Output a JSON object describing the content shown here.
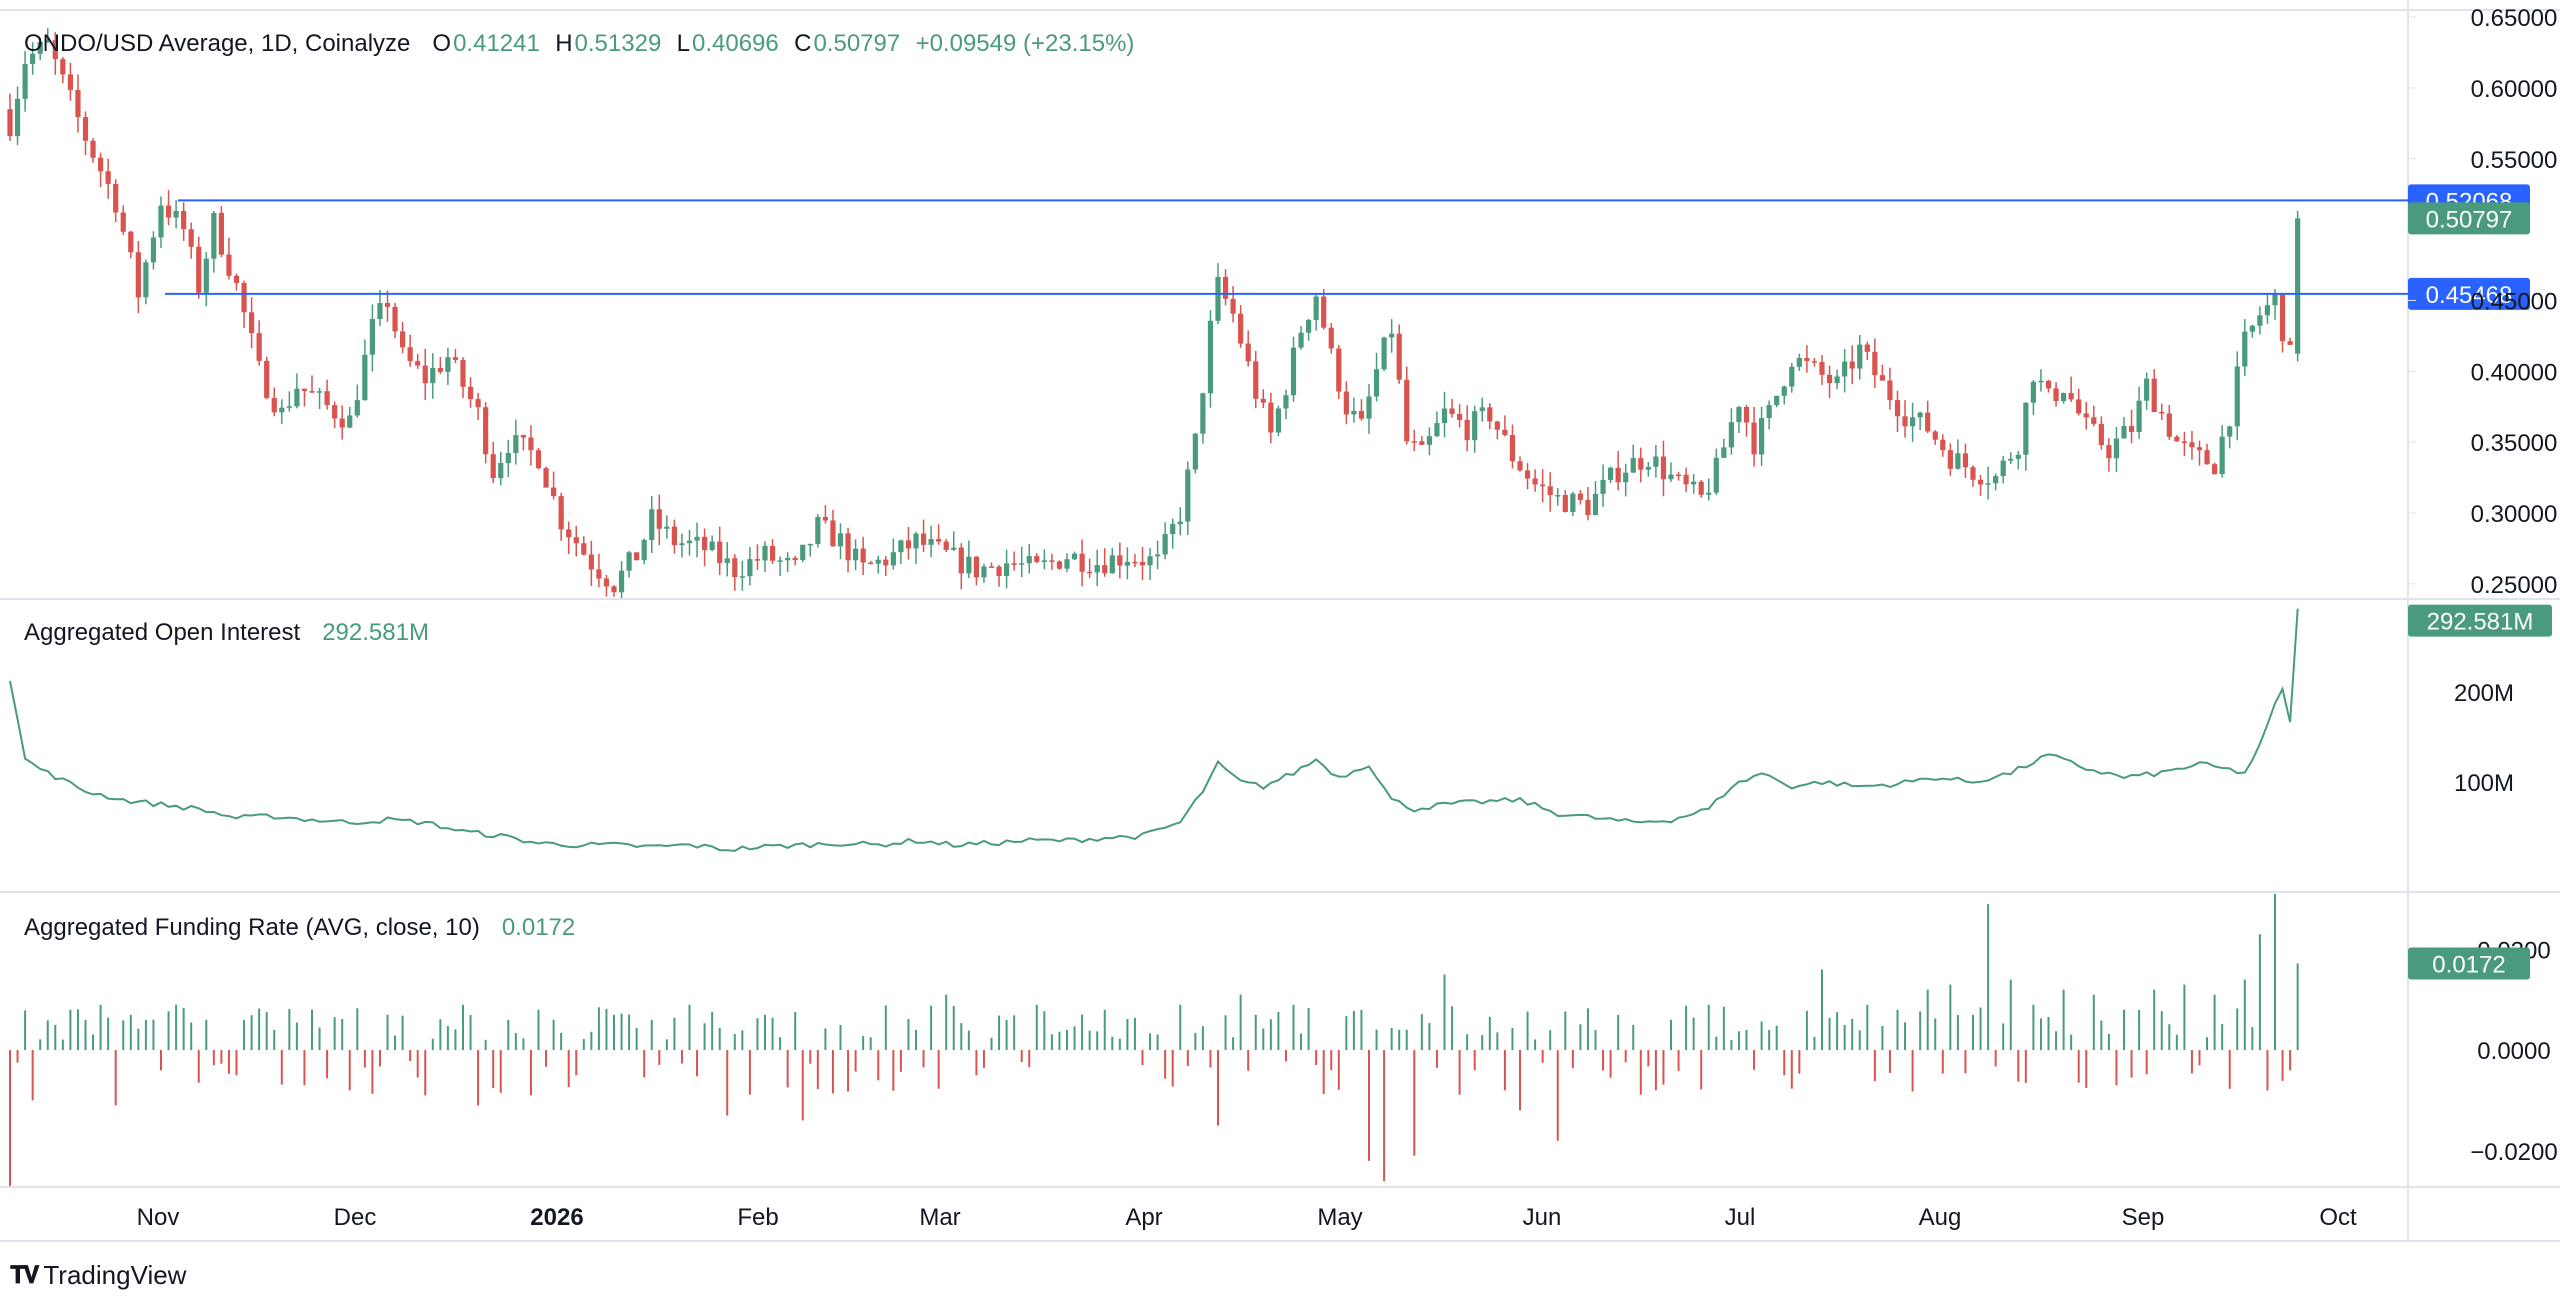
{
  "price_legend": {
    "symbol": "ONDO/USD Average, 1D, Coinalyze",
    "o_label": "O",
    "o_value": "0.41241",
    "h_label": "H",
    "h_value": "0.51329",
    "l_label": "L",
    "l_value": "0.40696",
    "c_label": "C",
    "c_value": "0.50797",
    "change": "+0.09549 (+23.15%)"
  },
  "oi_legend": {
    "name": "Aggregated Open Interest",
    "value": "292.581M"
  },
  "fr_legend": {
    "name": "Aggregated Funding Rate (AVG, close, 10)",
    "value": "0.0172"
  },
  "brand": {
    "name": "TradingView"
  },
  "colors": {
    "up": "#4a9a7e",
    "down": "#d9534f",
    "hline": "#2962ff",
    "grid": "#e0e3eb",
    "text": "#131722"
  },
  "chart_data": [
    {
      "type": "candlestick",
      "title": "ONDO/USD Average, 1D, Coinalyze",
      "ylim": [
        0.24,
        0.655
      ],
      "y_ticks": [
        "0.65000",
        "0.60000",
        "0.55000",
        "0.45000",
        "0.40000",
        "0.35000",
        "0.30000",
        "0.25000"
      ],
      "x_ticks": [
        "Nov",
        "Dec",
        "2026",
        "Feb",
        "Mar",
        "Apr",
        "May",
        "Jun",
        "Jul",
        "Aug",
        "Sep",
        "Oct"
      ],
      "horizontal_lines": [
        {
          "value": 0.52068,
          "label": "0.52068"
        },
        {
          "value": 0.45468,
          "label": "0.45468"
        }
      ],
      "last_price": {
        "value": 0.50797,
        "label": "0.50797"
      },
      "close_keypoints": [
        [
          0,
          0.575
        ],
        [
          2,
          0.62
        ],
        [
          5,
          0.63
        ],
        [
          10,
          0.565
        ],
        [
          14,
          0.52
        ],
        [
          17,
          0.455
        ],
        [
          20,
          0.52
        ],
        [
          23,
          0.5
        ],
        [
          25,
          0.46
        ],
        [
          27,
          0.505
        ],
        [
          30,
          0.46
        ],
        [
          33,
          0.4
        ],
        [
          36,
          0.37
        ],
        [
          38,
          0.39
        ],
        [
          42,
          0.375
        ],
        [
          45,
          0.365
        ],
        [
          48,
          0.43
        ],
        [
          50,
          0.45
        ],
        [
          52,
          0.41
        ],
        [
          55,
          0.395
        ],
        [
          58,
          0.41
        ],
        [
          62,
          0.37
        ],
        [
          64,
          0.33
        ],
        [
          66,
          0.35
        ],
        [
          70,
          0.34
        ],
        [
          73,
          0.295
        ],
        [
          77,
          0.265
        ],
        [
          80,
          0.25
        ],
        [
          83,
          0.27
        ],
        [
          85,
          0.295
        ],
        [
          88,
          0.28
        ],
        [
          92,
          0.275
        ],
        [
          96,
          0.26
        ],
        [
          100,
          0.27
        ],
        [
          104,
          0.26
        ],
        [
          107,
          0.29
        ],
        [
          110,
          0.28
        ],
        [
          113,
          0.26
        ],
        [
          117,
          0.27
        ],
        [
          120,
          0.28
        ],
        [
          124,
          0.27
        ],
        [
          128,
          0.26
        ],
        [
          132,
          0.265
        ],
        [
          136,
          0.26
        ],
        [
          140,
          0.27
        ],
        [
          144,
          0.265
        ],
        [
          148,
          0.27
        ],
        [
          152,
          0.265
        ],
        [
          155,
          0.3
        ],
        [
          157,
          0.35
        ],
        [
          159,
          0.43
        ],
        [
          160,
          0.46
        ],
        [
          162,
          0.44
        ],
        [
          165,
          0.385
        ],
        [
          167,
          0.355
        ],
        [
          169,
          0.39
        ],
        [
          171,
          0.43
        ],
        [
          173,
          0.455
        ],
        [
          175,
          0.41
        ],
        [
          177,
          0.375
        ],
        [
          179,
          0.36
        ],
        [
          181,
          0.4
        ],
        [
          183,
          0.43
        ],
        [
          185,
          0.35
        ],
        [
          187,
          0.34
        ],
        [
          190,
          0.37
        ],
        [
          193,
          0.36
        ],
        [
          196,
          0.37
        ],
        [
          199,
          0.34
        ],
        [
          202,
          0.32
        ],
        [
          205,
          0.31
        ],
        [
          209,
          0.305
        ],
        [
          213,
          0.33
        ],
        [
          217,
          0.34
        ],
        [
          221,
          0.32
        ],
        [
          224,
          0.31
        ],
        [
          226,
          0.33
        ],
        [
          229,
          0.38
        ],
        [
          231,
          0.35
        ],
        [
          233,
          0.37
        ],
        [
          236,
          0.41
        ],
        [
          239,
          0.4
        ],
        [
          242,
          0.39
        ],
        [
          245,
          0.415
        ],
        [
          248,
          0.39
        ],
        [
          251,
          0.37
        ],
        [
          254,
          0.36
        ],
        [
          257,
          0.34
        ],
        [
          260,
          0.33
        ],
        [
          263,
          0.325
        ],
        [
          266,
          0.35
        ],
        [
          268,
          0.4
        ],
        [
          270,
          0.38
        ],
        [
          272,
          0.39
        ],
        [
          275,
          0.36
        ],
        [
          278,
          0.345
        ],
        [
          281,
          0.36
        ],
        [
          283,
          0.39
        ],
        [
          285,
          0.37
        ],
        [
          287,
          0.35
        ],
        [
          289,
          0.34
        ],
        [
          292,
          0.335
        ],
        [
          294,
          0.37
        ],
        [
          296,
          0.42
        ],
        [
          298,
          0.44
        ],
        [
          300,
          0.45
        ],
        [
          301,
          0.43
        ],
        [
          302,
          0.41
        ],
        [
          303,
          0.50797
        ]
      ]
    },
    {
      "type": "line",
      "title": "Aggregated Open Interest",
      "ylim": [
        0,
        300
      ],
      "y_ticks": [
        "200M",
        "100M"
      ],
      "last_value_label": "292.581M",
      "x": [
        0,
        2,
        5,
        10,
        15,
        20,
        25,
        30,
        35,
        40,
        45,
        50,
        55,
        60,
        65,
        70,
        75,
        80,
        85,
        90,
        95,
        100,
        105,
        110,
        115,
        120,
        125,
        130,
        135,
        140,
        145,
        150,
        155,
        158,
        160,
        163,
        166,
        170,
        173,
        176,
        180,
        183,
        186,
        190,
        195,
        200,
        205,
        210,
        215,
        220,
        225,
        228,
        232,
        236,
        240,
        245,
        250,
        255,
        260,
        265,
        270,
        275,
        280,
        285,
        290,
        293,
        296,
        298,
        300,
        301,
        302,
        303
      ],
      "values": [
        215,
        125,
        110,
        90,
        80,
        75,
        70,
        60,
        62,
        58,
        55,
        58,
        55,
        45,
        40,
        32,
        30,
        30,
        28,
        30,
        25,
        28,
        30,
        32,
        30,
        35,
        30,
        32,
        35,
        35,
        38,
        40,
        55,
        90,
        120,
        100,
        95,
        110,
        125,
        105,
        120,
        80,
        70,
        75,
        78,
        80,
        65,
        60,
        55,
        58,
        70,
        95,
        110,
        95,
        100,
        95,
        98,
        105,
        100,
        110,
        130,
        115,
        105,
        110,
        120,
        115,
        110,
        140,
        185,
        205,
        165,
        292.581
      ]
    },
    {
      "type": "bar",
      "title": "Aggregated Funding Rate (AVG, close, 10)",
      "ylim": [
        -0.027,
        0.031
      ],
      "y_ticks": [
        "0.0200",
        "0.0000",
        "−0.0200"
      ],
      "last_value_label": "0.0172",
      "x": [
        0,
        3,
        6,
        8,
        10,
        12,
        14,
        16,
        18,
        20,
        22,
        26,
        30,
        35,
        40,
        45,
        50,
        55,
        60,
        62,
        66,
        70,
        75,
        80,
        85,
        90,
        95,
        100,
        105,
        110,
        115,
        120,
        124,
        128,
        132,
        136,
        140,
        145,
        150,
        155,
        160,
        163,
        165,
        170,
        175,
        180,
        182,
        186,
        190,
        194,
        198,
        200,
        205,
        210,
        215,
        218,
        220,
        225,
        230,
        235,
        240,
        243,
        246,
        250,
        254,
        257,
        260,
        262,
        265,
        268,
        272,
        276,
        280,
        284,
        288,
        292,
        296,
        298,
        300,
        302,
        303
      ],
      "values": [
        -0.028,
        -0.01,
        0.005,
        0.008,
        0.006,
        0.009,
        -0.011,
        0.007,
        0.006,
        -0.004,
        0.009,
        0.006,
        -0.005,
        0.004,
        0.008,
        -0.008,
        0.007,
        -0.009,
        0.009,
        -0.011,
        0.006,
        0.008,
        -0.005,
        0.007,
        0.006,
        0.009,
        -0.013,
        0.007,
        -0.014,
        0.005,
        -0.006,
        0.004,
        0.011,
        -0.005,
        0.006,
        0.009,
        0.004,
        0.008,
        -0.003,
        0.009,
        -0.015,
        0.011,
        0.007,
        0.009,
        -0.004,
        -0.022,
        -0.026,
        -0.021,
        0.015,
        -0.004,
        -0.008,
        -0.012,
        -0.018,
        0.004,
        0.005,
        -0.008,
        0.006,
        0.009,
        0.004,
        -0.005,
        0.016,
        0.005,
        0.009,
        0.008,
        0.012,
        0.013,
        0.007,
        0.029,
        0.014,
        0.009,
        0.012,
        0.011,
        0.008,
        0.012,
        0.013,
        0.011,
        0.014,
        0.023,
        0.031,
        -0.004,
        0.0172
      ]
    }
  ]
}
